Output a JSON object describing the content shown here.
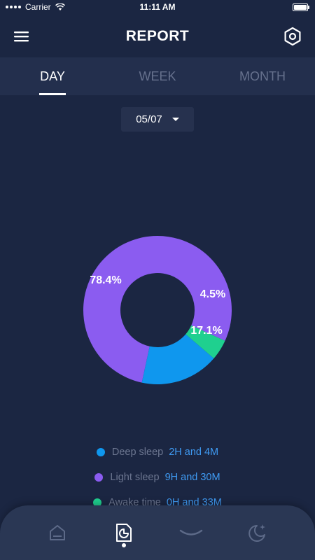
{
  "status_bar": {
    "carrier": "Carrier",
    "time": "11:11 AM"
  },
  "header": {
    "title": "REPORT",
    "menu_icon": "hamburger-menu-icon",
    "settings_icon": "hexagon-settings-icon"
  },
  "tabs": [
    {
      "label": "DAY",
      "active": true
    },
    {
      "label": "WEEK",
      "active": false
    },
    {
      "label": "MONTH",
      "active": false
    }
  ],
  "date_select": {
    "value": "05/07"
  },
  "chart_data": {
    "type": "pie",
    "donut": true,
    "slices": [
      {
        "label": "Light sleep",
        "value": 78.4,
        "display": "78.4%",
        "color": "#8b5cf0"
      },
      {
        "label": "Awake time",
        "value": 4.5,
        "display": "4.5%",
        "color": "#1fd08f"
      },
      {
        "label": "Deep sleep",
        "value": 17.1,
        "display": "17.1%",
        "color": "#0f97ee"
      }
    ]
  },
  "legend": [
    {
      "name": "Deep sleep",
      "value": "2H and 4M",
      "color": "#0f97ee"
    },
    {
      "name": "Light sleep",
      "value": "9H and 30M",
      "color": "#8b5cf0"
    },
    {
      "name": "Awake time",
      "value": "0H and 33M",
      "color": "#1fd08f"
    }
  ],
  "bottom_nav": [
    {
      "icon": "home-icon",
      "active": false
    },
    {
      "icon": "report-icon",
      "active": true
    },
    {
      "icon": "sleep-wave-icon",
      "active": false
    },
    {
      "icon": "moon-star-icon",
      "active": false
    }
  ],
  "colors": {
    "background": "#1b2642",
    "tab_bar": "#232f4d",
    "accent_blue": "#3f9af2",
    "nav_bg": "#2a3754"
  }
}
